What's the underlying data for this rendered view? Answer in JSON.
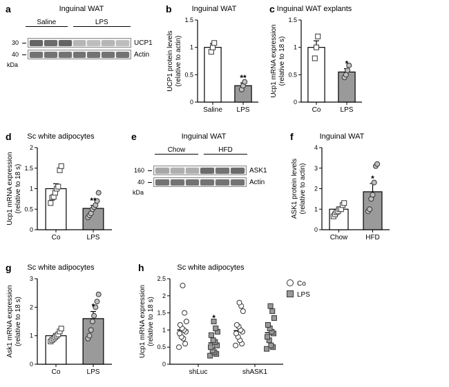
{
  "colors": {
    "bar_open": "#ffffff",
    "bar_fill": "#9a9a9a",
    "bar_stroke": "#000000",
    "marker_open": "#ffffff",
    "marker_stroke": "#333333",
    "axis": "#000000",
    "error_bar": "#000000",
    "bg": "#ffffff"
  },
  "typography": {
    "panel_label_fontsize": 14,
    "title_fontsize": 11,
    "axis_label_fontsize": 10,
    "tick_fontsize": 9
  },
  "a": {
    "label": "a",
    "title": "Inguinal WAT",
    "groups": [
      {
        "name": "Saline",
        "lanes": 3
      },
      {
        "name": "LPS",
        "lanes": 4
      }
    ],
    "bands": [
      {
        "name": "UCP1",
        "mw": "30",
        "intensities": [
          0.9,
          0.85,
          0.9,
          0.35,
          0.3,
          0.35,
          0.3
        ]
      },
      {
        "name": "Actin",
        "mw": "40",
        "intensities": [
          0.8,
          0.8,
          0.8,
          0.8,
          0.8,
          0.8,
          0.8
        ]
      }
    ],
    "unit_label": "kDa"
  },
  "b": {
    "label": "b",
    "title": "Inguinal WAT",
    "type": "bar",
    "ylabel_line1": "UCP1 protein levels",
    "ylabel_line2": "(relative to actin)",
    "ylim": [
      0,
      1.5
    ],
    "ytick_step": 0.5,
    "bars": [
      {
        "x": "Saline",
        "mean": 1.0,
        "sem": 0.07,
        "fill": "#ffffff",
        "points": [
          0.92,
          1.0,
          1.08
        ],
        "marker": "square"
      },
      {
        "x": "LPS",
        "mean": 0.3,
        "sem": 0.05,
        "fill": "#9a9a9a",
        "points": [
          0.23,
          0.3,
          0.37
        ],
        "marker": "circle",
        "sig": "**"
      }
    ],
    "bar_width": 0.55
  },
  "c": {
    "label": "c",
    "title": "Inguinal WAT explants",
    "type": "bar",
    "ylabel_line1": "Ucp1 mRNA expression",
    "ylabel_line2": "(relative to 18 s)",
    "ylim": [
      0,
      1.5
    ],
    "ytick_step": 0.5,
    "bars": [
      {
        "x": "Co",
        "mean": 1.0,
        "sem": 0.12,
        "fill": "#ffffff",
        "points": [
          0.8,
          1.0,
          1.2
        ],
        "marker": "square"
      },
      {
        "x": "LPS",
        "mean": 0.55,
        "sem": 0.06,
        "fill": "#9a9a9a",
        "points": [
          0.45,
          0.5,
          0.58,
          0.67
        ],
        "marker": "circle",
        "sig": "*"
      }
    ],
    "bar_width": 0.55
  },
  "d": {
    "label": "d",
    "title": "Sc white adipocytes",
    "type": "bar",
    "ylabel_line1": "Ucp1 mRNA expression",
    "ylabel_line2": "(relative to 18 s)",
    "ylim": [
      0,
      2.0
    ],
    "ytick_step": 0.5,
    "bars": [
      {
        "x": "Co",
        "mean": 1.0,
        "sem": 0.12,
        "fill": "#ffffff",
        "points": [
          0.65,
          0.78,
          0.8,
          0.9,
          1.0,
          1.05,
          1.45,
          1.55
        ],
        "marker": "square"
      },
      {
        "x": "LPS",
        "mean": 0.52,
        "sem": 0.07,
        "fill": "#9a9a9a",
        "points": [
          0.3,
          0.35,
          0.4,
          0.5,
          0.55,
          0.6,
          0.7,
          0.9
        ],
        "marker": "circle",
        "sig": "**"
      }
    ],
    "bar_width": 0.55
  },
  "e": {
    "label": "e",
    "title": "Inguinal WAT",
    "groups": [
      {
        "name": "Chow",
        "lanes": 3
      },
      {
        "name": "HFD",
        "lanes": 3
      }
    ],
    "bands": [
      {
        "name": "ASK1",
        "mw": "160",
        "intensities": [
          0.45,
          0.4,
          0.4,
          0.85,
          0.8,
          0.85
        ]
      },
      {
        "name": "Actin",
        "mw": "40",
        "intensities": [
          0.8,
          0.8,
          0.8,
          0.8,
          0.8,
          0.8
        ]
      }
    ],
    "unit_label": "kDa"
  },
  "f": {
    "label": "f",
    "title": "Inguinal WAT",
    "type": "bar",
    "ylabel_line1": "ASK1 protein levels",
    "ylabel_line2": "(relative to actin)",
    "ylim": [
      0,
      4
    ],
    "ytick_step": 1,
    "bars": [
      {
        "x": "Chow",
        "mean": 1.0,
        "sem": 0.1,
        "fill": "#ffffff",
        "points": [
          0.65,
          0.75,
          0.85,
          0.9,
          1.0,
          1.0,
          1.2,
          1.3
        ],
        "marker": "square"
      },
      {
        "x": "HFD",
        "mean": 1.85,
        "sem": 0.4,
        "fill": "#9a9a9a",
        "points": [
          0.9,
          1.0,
          1.5,
          1.7,
          2.3,
          3.1,
          3.2
        ],
        "marker": "circle",
        "sig": "*"
      }
    ],
    "bar_width": 0.55
  },
  "g": {
    "label": "g",
    "title": "Sc white adipocytes",
    "type": "bar",
    "ylabel_line1": "Ask1 mRNA expression",
    "ylabel_line2": "(relative to 18 s)",
    "ylim": [
      0,
      3
    ],
    "ytick_step": 1,
    "bars": [
      {
        "x": "Co",
        "mean": 1.0,
        "sem": 0.07,
        "fill": "#ffffff",
        "points": [
          0.8,
          0.85,
          0.9,
          0.95,
          1.0,
          1.05,
          1.15,
          1.25
        ],
        "marker": "square"
      },
      {
        "x": "LPS",
        "mean": 1.6,
        "sem": 0.25,
        "fill": "#9a9a9a",
        "points": [
          0.9,
          1.0,
          1.2,
          1.5,
          1.7,
          2.0,
          2.2,
          2.45
        ],
        "marker": "circle",
        "sig": "*"
      }
    ],
    "bar_width": 0.55
  },
  "h": {
    "label": "h",
    "title": "Sc white adipocytes",
    "type": "grouped_scatter",
    "ylabel_line1": "Ucp1 mRNA expression",
    "ylabel_line2": "(relative to 18 s)",
    "ylim": [
      0,
      2.5
    ],
    "ytick_step": 0.5,
    "legend": [
      {
        "name": "Co",
        "marker": "circle",
        "fill": "#ffffff"
      },
      {
        "name": "LPS",
        "marker": "square",
        "fill": "#9a9a9a"
      }
    ],
    "groups": [
      {
        "x": "shLuc",
        "series": [
          {
            "key": "Co",
            "mean": 1.0,
            "points": [
              0.5,
              0.6,
              0.75,
              0.8,
              0.9,
              0.95,
              1.0,
              1.05,
              1.15,
              1.25,
              1.5,
              2.3
            ]
          },
          {
            "key": "LPS",
            "mean": 0.62,
            "points": [
              0.25,
              0.3,
              0.35,
              0.4,
              0.5,
              0.55,
              0.65,
              0.7,
              0.85,
              0.95,
              1.05,
              1.25
            ],
            "sig": "*"
          }
        ]
      },
      {
        "x": "shASK1",
        "series": [
          {
            "key": "Co",
            "mean": 0.98,
            "points": [
              0.55,
              0.6,
              0.7,
              0.8,
              0.9,
              0.95,
              1.0,
              1.1,
              1.15,
              1.55,
              1.7,
              1.8
            ]
          },
          {
            "key": "LPS",
            "mean": 0.92,
            "points": [
              0.45,
              0.5,
              0.55,
              0.7,
              0.8,
              0.9,
              0.95,
              1.05,
              1.15,
              1.35,
              1.55,
              1.7
            ]
          }
        ]
      }
    ],
    "marker_size": 7
  }
}
